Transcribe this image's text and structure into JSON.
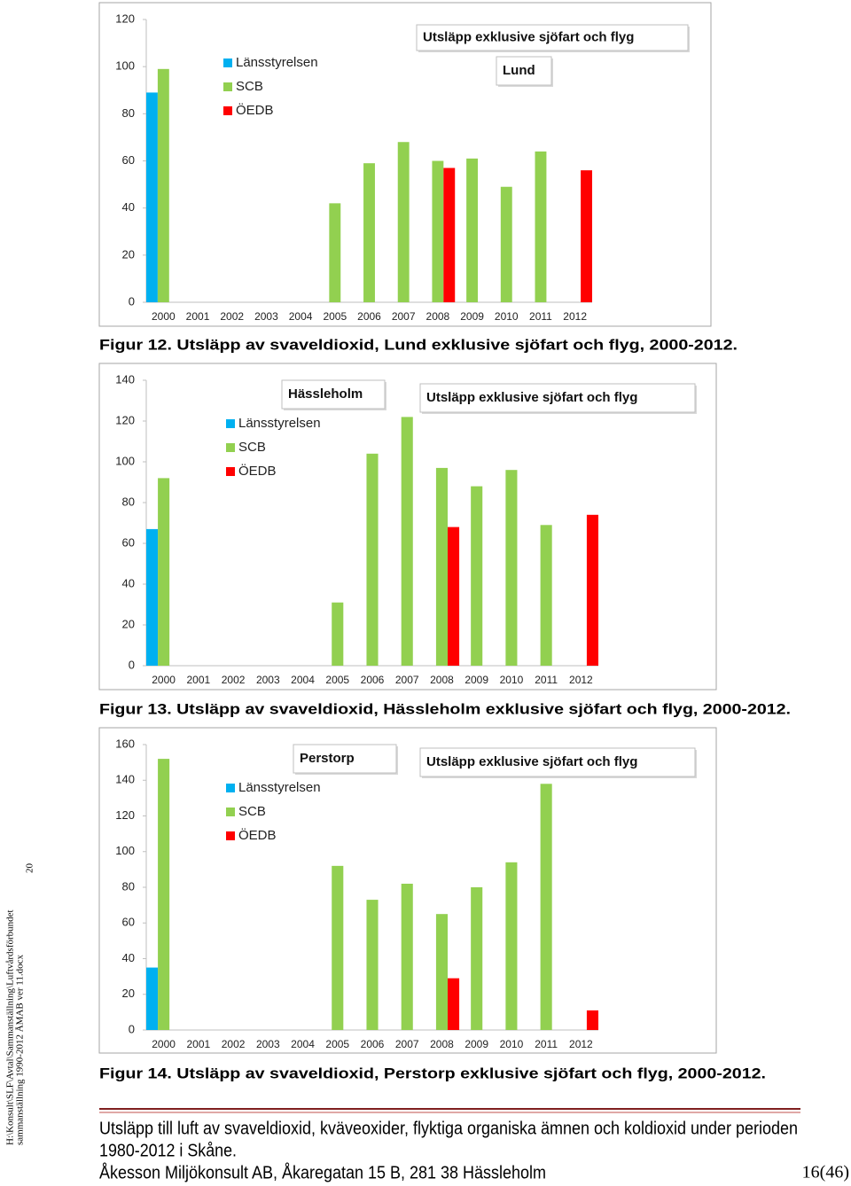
{
  "side_text": {
    "lines": [
      "H:\\Konsult\\SLF\\Avtal\\Sammanställning\\Luftvårdsförbundet",
      "sammanställning 1990-2012 ÅMAB ver 11.docx"
    ],
    "number": "20"
  },
  "chart_data": [
    {
      "type": "bar",
      "categories": [
        "2000",
        "2001",
        "2002",
        "2003",
        "2004",
        "2005",
        "2006",
        "2007",
        "2008",
        "2009",
        "2010",
        "2011",
        "2012"
      ],
      "series": [
        {
          "name": "Länsstyrelsen",
          "color": "#00b0f0",
          "values": [
            89,
            null,
            null,
            null,
            null,
            null,
            null,
            null,
            null,
            null,
            null,
            null,
            null
          ]
        },
        {
          "name": "SCB",
          "color": "#92d050",
          "values": [
            99,
            null,
            null,
            null,
            null,
            42,
            59,
            68,
            60,
            61,
            49,
            64,
            null
          ]
        },
        {
          "name": "ÖEDB",
          "color": "#ff0000",
          "values": [
            null,
            null,
            null,
            null,
            null,
            null,
            null,
            null,
            57,
            null,
            null,
            null,
            56
          ]
        }
      ],
      "ylim": [
        0,
        120
      ],
      "yticks": [
        0,
        20,
        40,
        60,
        80,
        100,
        120
      ],
      "annotations": [
        "Lund",
        "Utsläpp exklusive sjöfart och flyg"
      ],
      "caption": "Figur 12. Utsläpp av svaveldioxid, Lund exklusive sjöfart och flyg, 2000-2012."
    },
    {
      "type": "bar",
      "categories": [
        "2000",
        "2001",
        "2002",
        "2003",
        "2004",
        "2005",
        "2006",
        "2007",
        "2008",
        "2009",
        "2010",
        "2011",
        "2012"
      ],
      "series": [
        {
          "name": "Länsstyrelsen",
          "color": "#00b0f0",
          "values": [
            67,
            null,
            null,
            null,
            null,
            null,
            null,
            null,
            null,
            null,
            null,
            null,
            null
          ]
        },
        {
          "name": "SCB",
          "color": "#92d050",
          "values": [
            92,
            null,
            null,
            null,
            null,
            31,
            104,
            122,
            97,
            88,
            96,
            69,
            null
          ]
        },
        {
          "name": "ÖEDB",
          "color": "#ff0000",
          "values": [
            null,
            null,
            null,
            null,
            null,
            null,
            null,
            null,
            68,
            null,
            null,
            null,
            74
          ]
        }
      ],
      "ylim": [
        0,
        140
      ],
      "yticks": [
        0,
        20,
        40,
        60,
        80,
        100,
        120,
        140
      ],
      "annotations": [
        "Hässleholm",
        "Utsläpp exklusive sjöfart och flyg"
      ],
      "caption": "Figur 13. Utsläpp av svaveldioxid, Hässleholm exklusive sjöfart och flyg, 2000-2012."
    },
    {
      "type": "bar",
      "categories": [
        "2000",
        "2001",
        "2002",
        "2003",
        "2004",
        "2005",
        "2006",
        "2007",
        "2008",
        "2009",
        "2010",
        "2011",
        "2012"
      ],
      "series": [
        {
          "name": "Länsstyrelsen",
          "color": "#00b0f0",
          "values": [
            35,
            null,
            null,
            null,
            null,
            null,
            null,
            null,
            null,
            null,
            null,
            null,
            null
          ]
        },
        {
          "name": "SCB",
          "color": "#92d050",
          "values": [
            152,
            null,
            null,
            null,
            null,
            92,
            73,
            82,
            65,
            80,
            94,
            138,
            null
          ]
        },
        {
          "name": "ÖEDB",
          "color": "#ff0000",
          "values": [
            null,
            null,
            null,
            null,
            null,
            null,
            null,
            null,
            29,
            null,
            null,
            null,
            11
          ]
        }
      ],
      "ylim": [
        0,
        160
      ],
      "yticks": [
        0,
        20,
        40,
        60,
        80,
        100,
        120,
        140,
        160
      ],
      "annotations": [
        "Perstorp",
        "Utsläpp exklusive sjöfart och flyg"
      ],
      "caption": "Figur 14. Utsläpp av svaveldioxid, Perstorp exklusive sjöfart och flyg, 2000-2012."
    }
  ],
  "footer": {
    "title_lines": [
      "Utsläpp till luft av svaveldioxid, kväveoxider, flyktiga organiska ämnen och koldioxid under perioden",
      "1980-2012 i Skåne."
    ],
    "company": "Åkesson Miljökonsult AB, Åkaregatan 15 B, 281 38 Hässleholm",
    "page": "16(46)"
  }
}
